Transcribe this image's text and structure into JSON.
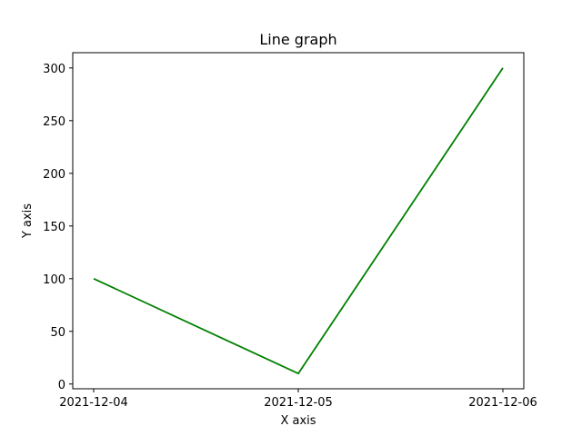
{
  "chart_data": {
    "type": "line",
    "title": "Line graph",
    "xlabel": "X axis",
    "ylabel": "Y axis",
    "categories": [
      "2021-12-04",
      "2021-12-05",
      "2021-12-06"
    ],
    "series": [
      {
        "values": [
          100,
          10,
          300
        ],
        "color": "#008000"
      }
    ],
    "yticks": [
      0,
      50,
      100,
      150,
      200,
      250,
      300
    ],
    "ylim": [
      -4.5,
      314.5
    ],
    "grid": false,
    "legend": "none"
  }
}
